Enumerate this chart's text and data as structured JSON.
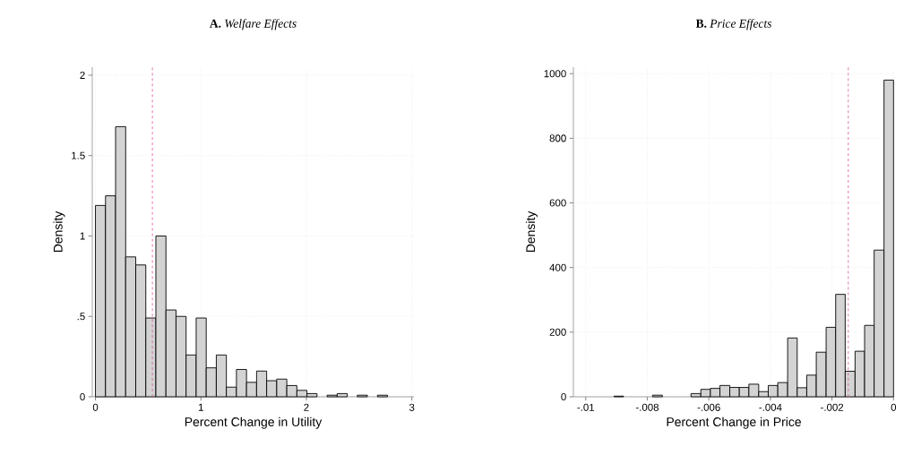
{
  "chart_data": [
    {
      "type": "histogram",
      "title": "**A.** *Welfare Effects*",
      "xlabel": "Percent Change in Utility",
      "ylabel": "Density",
      "bins": [
        0,
        0.0955,
        0.191,
        0.2865,
        0.382,
        0.4775,
        0.573,
        0.6685,
        0.764,
        0.8595,
        0.955,
        1.0505,
        1.146,
        1.2415,
        1.337,
        1.4325,
        1.528,
        1.6235,
        1.719,
        1.8145,
        1.91,
        2.0055,
        2.101,
        2.1965,
        2.292,
        2.3875,
        2.483,
        2.5785,
        2.674,
        2.7695
      ],
      "values": [
        1.19,
        1.25,
        1.68,
        0.87,
        0.82,
        0.49,
        1.0,
        0.54,
        0.5,
        0.26,
        0.49,
        0.18,
        0.26,
        0.06,
        0.17,
        0.09,
        0.16,
        0.1,
        0.11,
        0.07,
        0.04,
        0.02,
        0,
        0.01,
        0.02,
        0,
        0.01,
        0,
        0.01
      ],
      "color": "#d3d3d3",
      "xlim": [
        -0.03,
        3.02
      ],
      "ylim": [
        0,
        2.05
      ],
      "xticks": [
        0,
        1,
        2,
        3
      ],
      "yticks": [
        0,
        {
          "value": 0.5,
          "label": ".5"
        },
        1,
        1.5,
        2
      ],
      "grid": true,
      "ref_lines": [
        {
          "axis": "x",
          "value": 0.54,
          "color": "#d9559e",
          "line_style": "dashed"
        }
      ]
    },
    {
      "type": "histogram",
      "title": "**B.** *Price Effects*",
      "xlabel": "Percent Change in Price",
      "ylabel": "Density",
      "bins": [
        -0.00908,
        -0.00877,
        -0.00845,
        -0.00814,
        -0.00783,
        -0.00751,
        -0.0072,
        -0.00689,
        -0.00658,
        -0.00626,
        -0.00595,
        -0.00564,
        -0.00532,
        -0.00501,
        -0.0047,
        -0.00438,
        -0.00407,
        -0.00376,
        -0.00344,
        -0.00313,
        -0.00282,
        -0.00251,
        -0.00219,
        -0.00188,
        -0.00157,
        -0.00125,
        -0.00094,
        -0.00063,
        -0.00031,
        0
      ],
      "values": [
        2,
        0,
        0,
        0,
        5,
        0,
        0,
        0,
        10,
        23,
        26,
        35,
        29,
        29,
        39,
        16,
        35,
        44,
        182,
        28,
        67,
        138,
        215,
        317,
        79,
        141,
        221,
        454,
        980
      ],
      "color": "#d3d3d3",
      "xlim": [
        -0.0104,
        2e-05
      ],
      "ylim": [
        0,
        1020
      ],
      "xticks": [
        {
          "value": -0.01,
          "label": "-.01"
        },
        {
          "value": -0.008,
          "label": "-.008"
        },
        {
          "value": -0.006,
          "label": "-.006"
        },
        {
          "value": -0.004,
          "label": "-.004"
        },
        {
          "value": -0.002,
          "label": "-.002"
        },
        0
      ],
      "yticks": [
        0,
        200,
        400,
        600,
        800,
        1000
      ],
      "grid": true,
      "ref_lines": [
        {
          "axis": "x",
          "value": -0.00147,
          "color": "#d9559e",
          "line_style": "dashed"
        }
      ]
    }
  ]
}
